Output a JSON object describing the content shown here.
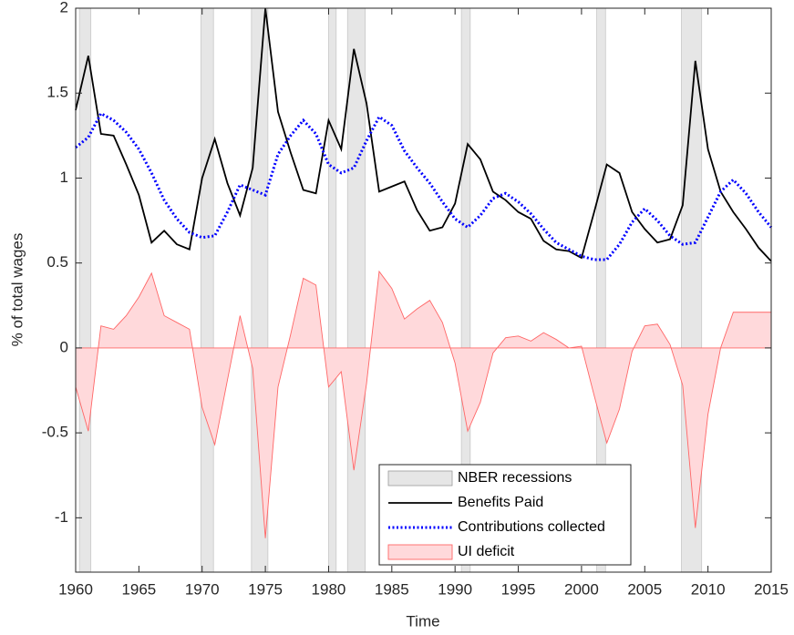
{
  "chart_data": {
    "type": "line",
    "xlabel": "Time",
    "ylabel": "% of total wages",
    "x": [
      1960,
      1961,
      1962,
      1963,
      1964,
      1965,
      1966,
      1967,
      1968,
      1969,
      1970,
      1971,
      1972,
      1973,
      1974,
      1975,
      1976,
      1977,
      1978,
      1979,
      1980,
      1981,
      1982,
      1983,
      1984,
      1985,
      1986,
      1987,
      1988,
      1989,
      1990,
      1991,
      1992,
      1993,
      1994,
      1995,
      1996,
      1997,
      1998,
      1999,
      2000,
      2001,
      2002,
      2003,
      2004,
      2005,
      2006,
      2007,
      2008,
      2009,
      2010,
      2011,
      2012,
      2013,
      2014,
      2015
    ],
    "recessions": {
      "name": "NBER recessions",
      "color": "#e6e6e6",
      "ranges": [
        [
          1960.3,
          1961.2
        ],
        [
          1969.9,
          1970.9
        ],
        [
          1973.9,
          1975.2
        ],
        [
          1980.0,
          1980.6
        ],
        [
          1981.5,
          1982.9
        ],
        [
          1990.5,
          1991.2
        ],
        [
          2001.2,
          2001.9
        ],
        [
          2007.9,
          2009.5
        ]
      ]
    },
    "series": [
      {
        "name": "Benefits Paid",
        "color": "#000000",
        "style": "solid",
        "values": [
          1.4,
          1.72,
          1.26,
          1.25,
          1.08,
          0.9,
          0.62,
          0.69,
          0.61,
          0.58,
          1.0,
          1.23,
          0.97,
          0.78,
          1.06,
          2.0,
          1.39,
          1.15,
          0.93,
          0.91,
          1.34,
          1.17,
          1.76,
          1.44,
          0.92,
          0.95,
          0.98,
          0.81,
          0.69,
          0.71,
          0.85,
          1.2,
          1.11,
          0.92,
          0.87,
          0.8,
          0.76,
          0.63,
          0.58,
          0.57,
          0.53,
          0.8,
          1.08,
          1.03,
          0.8,
          0.7,
          0.62,
          0.64,
          0.84,
          1.69,
          1.17,
          0.92,
          0.8,
          0.7,
          0.59,
          0.51
        ]
      },
      {
        "name": "Contributions collected",
        "color": "#0000ff",
        "style": "dotted",
        "values": [
          1.18,
          1.24,
          1.38,
          1.34,
          1.27,
          1.17,
          1.03,
          0.87,
          0.76,
          0.68,
          0.65,
          0.66,
          0.8,
          0.96,
          0.93,
          0.9,
          1.14,
          1.25,
          1.34,
          1.26,
          1.08,
          1.03,
          1.06,
          1.22,
          1.36,
          1.31,
          1.16,
          1.06,
          0.97,
          0.86,
          0.76,
          0.71,
          0.78,
          0.88,
          0.91,
          0.86,
          0.79,
          0.7,
          0.62,
          0.58,
          0.54,
          0.52,
          0.52,
          0.61,
          0.74,
          0.82,
          0.75,
          0.66,
          0.61,
          0.62,
          0.77,
          0.92,
          0.99,
          0.91,
          0.8,
          0.71
        ]
      },
      {
        "name": "UI deficit",
        "color": "#ff6666",
        "fill": "#ffd9db",
        "style": "area",
        "values": [
          -0.23,
          -0.49,
          0.13,
          0.11,
          0.19,
          0.3,
          0.44,
          0.19,
          0.15,
          0.11,
          -0.35,
          -0.57,
          -0.19,
          0.19,
          -0.12,
          -1.12,
          -0.23,
          0.08,
          0.41,
          0.37,
          -0.23,
          -0.14,
          -0.72,
          -0.21,
          0.45,
          0.35,
          0.17,
          0.23,
          0.28,
          0.15,
          -0.09,
          -0.49,
          -0.32,
          -0.03,
          0.06,
          0.07,
          0.04,
          0.09,
          0.05,
          0.0,
          0.01,
          -0.28,
          -0.56,
          -0.36,
          -0.02,
          0.13,
          0.14,
          0.02,
          -0.22,
          -1.06,
          -0.39,
          0.0,
          0.21,
          0.21,
          0.21,
          0.21
        ]
      }
    ],
    "xlim": [
      1960,
      2015
    ],
    "xticks": [
      1960,
      1965,
      1970,
      1975,
      1980,
      1985,
      1990,
      1995,
      2000,
      2005,
      2010,
      2015
    ],
    "ylim": [
      -1.32,
      2
    ],
    "yticks": [
      -1,
      -0.5,
      0,
      0.5,
      1,
      1.5,
      2
    ],
    "legend": "south-east"
  }
}
